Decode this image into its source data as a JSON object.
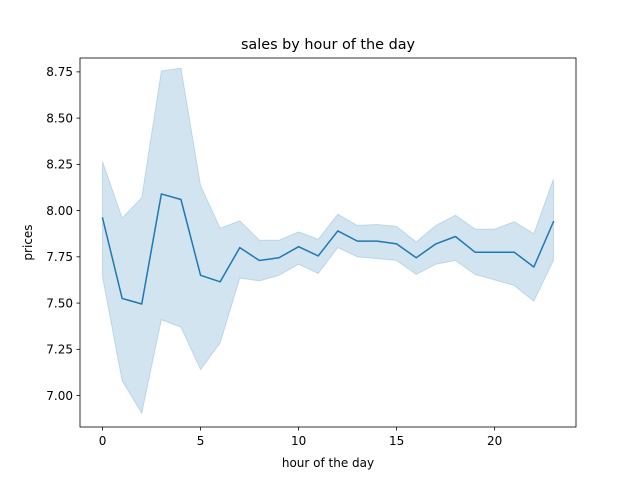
{
  "chart_data": {
    "type": "line",
    "title": "sales by hour of the day",
    "xlabel": "hour of the day",
    "ylabel": "prices",
    "xlim": [
      -1.15,
      24.15
    ],
    "ylim": [
      6.83,
      8.825
    ],
    "xticks": [
      0,
      5,
      10,
      15,
      20
    ],
    "xtick_labels": [
      "0",
      "5",
      "10",
      "15",
      "20"
    ],
    "yticks": [
      7.0,
      7.25,
      7.5,
      7.75,
      8.0,
      8.25,
      8.5,
      8.75
    ],
    "ytick_labels": [
      "7.00",
      "7.25",
      "7.50",
      "7.75",
      "8.00",
      "8.25",
      "8.50",
      "8.75"
    ],
    "grid": false,
    "line_color": "#1f77b4",
    "band_color": "#1f77b4",
    "band_opacity": 0.2,
    "series": [
      {
        "x": [
          0,
          1,
          2,
          3,
          4,
          5,
          6,
          7,
          8,
          9,
          10,
          11,
          12,
          13,
          14,
          15,
          16,
          17,
          18,
          19,
          20,
          21,
          22,
          23
        ],
        "values": [
          7.96,
          7.525,
          7.495,
          8.09,
          8.06,
          7.65,
          7.615,
          7.8,
          7.73,
          7.745,
          7.805,
          7.755,
          7.89,
          7.835,
          7.835,
          7.82,
          7.745,
          7.82,
          7.86,
          7.775,
          7.775,
          7.775,
          7.695,
          7.94
        ],
        "lower": [
          7.64,
          7.08,
          6.905,
          7.41,
          7.37,
          7.14,
          7.285,
          7.635,
          7.62,
          7.65,
          7.71,
          7.66,
          7.8,
          7.75,
          7.74,
          7.73,
          7.655,
          7.71,
          7.73,
          7.655,
          7.625,
          7.595,
          7.51,
          7.73
        ],
        "upper": [
          8.265,
          7.96,
          8.07,
          8.755,
          8.77,
          8.135,
          7.905,
          7.945,
          7.84,
          7.84,
          7.885,
          7.845,
          7.98,
          7.92,
          7.925,
          7.915,
          7.83,
          7.92,
          7.975,
          7.9,
          7.9,
          7.94,
          7.875,
          8.17
        ]
      }
    ]
  }
}
